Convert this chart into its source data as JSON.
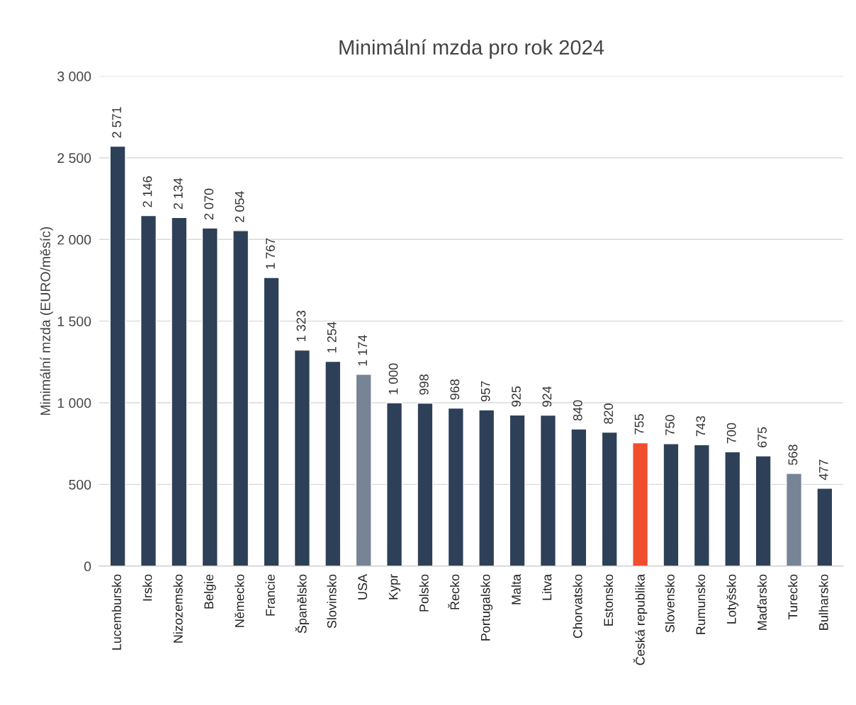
{
  "chart_data": {
    "type": "bar",
    "title": "Minimální mzda pro rok 2024",
    "ylabel": "Minimální mzda (EURO/měsíc)",
    "categories": [
      "Lucembursko",
      "Irsko",
      "Nizozemsko",
      "Belgie",
      "Německo",
      "Francie",
      "Španělsko",
      "Slovinsko",
      "USA",
      "Kypr",
      "Polsko",
      "Řecko",
      "Portugalsko",
      "Malta",
      "Litva",
      "Chorvatsko",
      "Estonsko",
      "Česká republika",
      "Slovensko",
      "Rumunsko",
      "Lotyšsko",
      "Maďarsko",
      "Turecko",
      "Bulharsko"
    ],
    "values": [
      2571,
      2146,
      2134,
      2070,
      2054,
      1767,
      1323,
      1254,
      1174,
      1000,
      998,
      968,
      957,
      925,
      924,
      840,
      820,
      755,
      750,
      743,
      700,
      675,
      568,
      477
    ],
    "colors": [
      "#2e4057",
      "#2e4057",
      "#2e4057",
      "#2e4057",
      "#2e4057",
      "#2e4057",
      "#2e4057",
      "#2e4057",
      "#768496",
      "#2e4057",
      "#2e4057",
      "#2e4057",
      "#2e4057",
      "#2e4057",
      "#2e4057",
      "#2e4057",
      "#2e4057",
      "#f04e2d",
      "#2e4057",
      "#2e4057",
      "#2e4057",
      "#2e4057",
      "#768496",
      "#2e4057"
    ],
    "value_labels": [
      "2 571",
      "2 146",
      "2 134",
      "2 070",
      "2 054",
      "1 767",
      "1 323",
      "1 254",
      "1 174",
      "1 000",
      "998",
      "968",
      "957",
      "925",
      "924",
      "840",
      "820",
      "755",
      "750",
      "743",
      "700",
      "675",
      "568",
      "477"
    ],
    "ylim": [
      0,
      3000
    ],
    "yticks": [
      0,
      500,
      {
        "value": 1000,
        "label": "1 000"
      },
      {
        "value": 1500,
        "label": "1 500"
      },
      {
        "value": 2000,
        "label": "2 000"
      },
      {
        "value": 2500,
        "label": "2 500"
      },
      {
        "value": 3000,
        "label": "3 000"
      }
    ],
    "grid": "y",
    "legend": false
  }
}
